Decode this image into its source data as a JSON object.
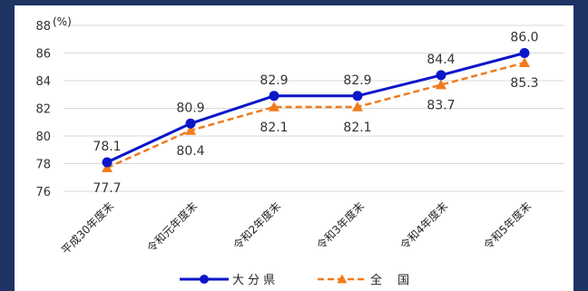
{
  "chart_data": {
    "type": "line",
    "unit": "(%)",
    "categories": [
      "平成30年度末",
      "令和元年度末",
      "令和2年度末",
      "令和3年度末",
      "令和4年度末",
      "令和5年度末"
    ],
    "ylim": [
      76,
      88
    ],
    "yticks": [
      76,
      78,
      80,
      82,
      84,
      86,
      88
    ],
    "grid": true,
    "legend_position": "bottom",
    "series": [
      {
        "name": "大 分 県",
        "values": [
          78.1,
          80.9,
          82.9,
          82.9,
          84.4,
          86.0
        ],
        "labels": [
          "78.1",
          "80.9",
          "82.9",
          "82.9",
          "84.4",
          "86.0"
        ],
        "color": "#0b16c9",
        "marker": "circle",
        "dash": "solid"
      },
      {
        "name": "全　 国",
        "values": [
          77.7,
          80.4,
          82.1,
          82.1,
          83.7,
          85.3
        ],
        "labels": [
          "77.7",
          "80.4",
          "82.1",
          "82.1",
          "83.7",
          "85.3"
        ],
        "color": "#f07b1c",
        "marker": "triangle",
        "dash": "dashed"
      }
    ]
  }
}
